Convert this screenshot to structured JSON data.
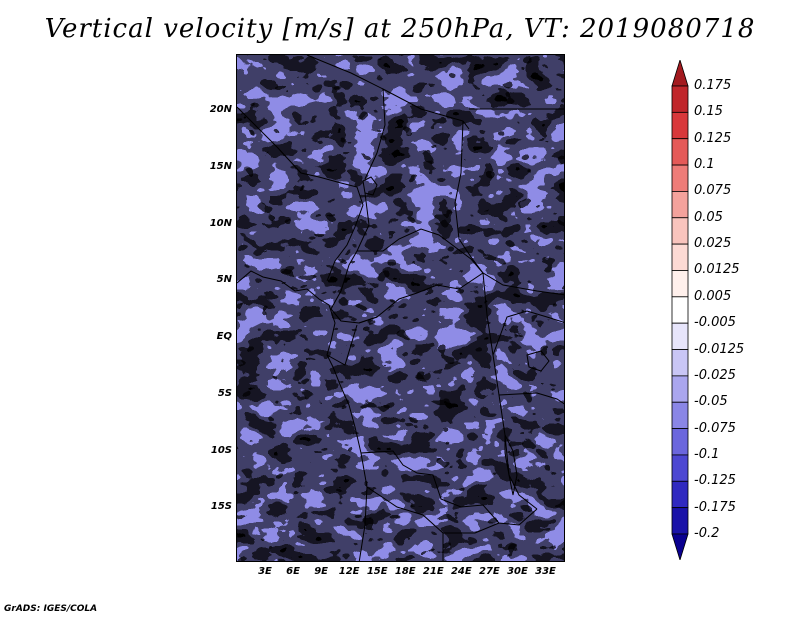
{
  "title": "Vertical velocity [m/s] at 250hPa, VT: 2019080718",
  "footer": "GrADS: IGES/COLA",
  "map": {
    "region": "Central Africa",
    "lat_labels": [
      "20N",
      "15N",
      "10N",
      "5N",
      "EQ",
      "5S",
      "10S",
      "15S"
    ],
    "lat_values": [
      20,
      15,
      10,
      5,
      0,
      -5,
      -10,
      -15
    ],
    "lon_labels": [
      "3E",
      "6E",
      "9E",
      "12E",
      "15E",
      "18E",
      "21E",
      "24E",
      "27E",
      "30E",
      "33E"
    ],
    "lon_values": [
      3,
      6,
      9,
      12,
      15,
      18,
      21,
      24,
      27,
      30,
      33
    ]
  },
  "colorbar": {
    "labels": [
      "0.175",
      "0.15",
      "0.125",
      "0.1",
      "0.075",
      "0.05",
      "0.025",
      "0.0125",
      "0.005",
      "-0.005",
      "-0.0125",
      "-0.025",
      "-0.05",
      "-0.075",
      "-0.1",
      "-0.125",
      "-0.175",
      "-0.2"
    ],
    "colors": [
      "#a31a1f",
      "#c0262b",
      "#d8383b",
      "#e55a58",
      "#ee7c78",
      "#f4a29c",
      "#f9c4bd",
      "#fddad4",
      "#fff0ec",
      "#ffffff",
      "#e7e5fb",
      "#c9c6f5",
      "#aaa6ee",
      "#8a86e6",
      "#6b66dd",
      "#4d47d2",
      "#3029c0",
      "#1a12a8",
      "#0a0090"
    ]
  },
  "colors": {
    "positive": "#e04848",
    "negative": "#5f5fe0",
    "background": "#ffffff"
  }
}
